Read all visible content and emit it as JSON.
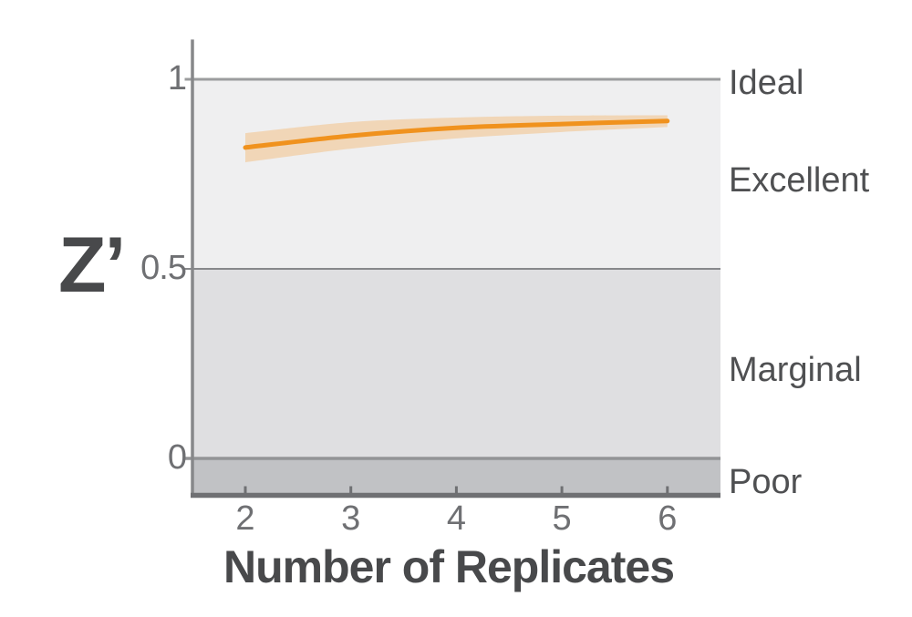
{
  "chart_data": {
    "type": "line",
    "title": "",
    "xlabel": "Number of Replicates",
    "ylabel": "Z’",
    "x": [
      2,
      3,
      4,
      5,
      6
    ],
    "series": [
      {
        "values": [
          0.82,
          0.851,
          0.872,
          0.882,
          0.89
        ]
      }
    ],
    "band": {
      "upper": [
        0.858,
        0.887,
        0.899,
        0.904,
        0.905
      ],
      "lower": [
        0.781,
        0.817,
        0.844,
        0.861,
        0.874
      ]
    },
    "xlim": [
      1.5,
      6.52
    ],
    "ylim": [
      -0.095,
      1.105
    ],
    "grid": false,
    "legend": "none",
    "x_ticks": [
      {
        "v": 2,
        "label": "2"
      },
      {
        "v": 3,
        "label": "3"
      },
      {
        "v": 4,
        "label": "4"
      },
      {
        "v": 5,
        "label": "5"
      },
      {
        "v": 6,
        "label": "6"
      }
    ],
    "y_ticks": [
      {
        "v": 1,
        "label": "1"
      },
      {
        "v": 0.5,
        "label": "0.5"
      },
      {
        "v": 0,
        "label": "0"
      }
    ],
    "reference_lines": [
      {
        "y": 1.0,
        "color": "#9b9c9e",
        "width": 3
      },
      {
        "y": 0.5,
        "color": "#87888b",
        "width": 2
      },
      {
        "y": 0.0,
        "color": "#939496",
        "width": 3.5
      }
    ],
    "zones": [
      {
        "label": "Ideal",
        "from": 1.0,
        "to": 1.105,
        "color": "#ffffff",
        "label_anchor": 0.99
      },
      {
        "label": "Excellent",
        "from": 0.5,
        "to": 1.0,
        "color": "#efeff0",
        "label_anchor": 0.732
      },
      {
        "label": "Marginal",
        "from": 0.0,
        "to": 0.5,
        "color": "#dfdfe1",
        "label_anchor": 0.232
      },
      {
        "label": "Poor",
        "from": -0.095,
        "to": 0.0,
        "color": "#c1c2c5",
        "label_anchor": -0.062
      }
    ],
    "colors": {
      "line": "#f0921e",
      "band": "#f6941e",
      "band_opacity": 0.27,
      "x_axis": "#6f7073",
      "y_axis": "#87888a",
      "tick_text": "#6f7073",
      "zone_text": "#4f5052",
      "title_text": "#48494b"
    }
  }
}
